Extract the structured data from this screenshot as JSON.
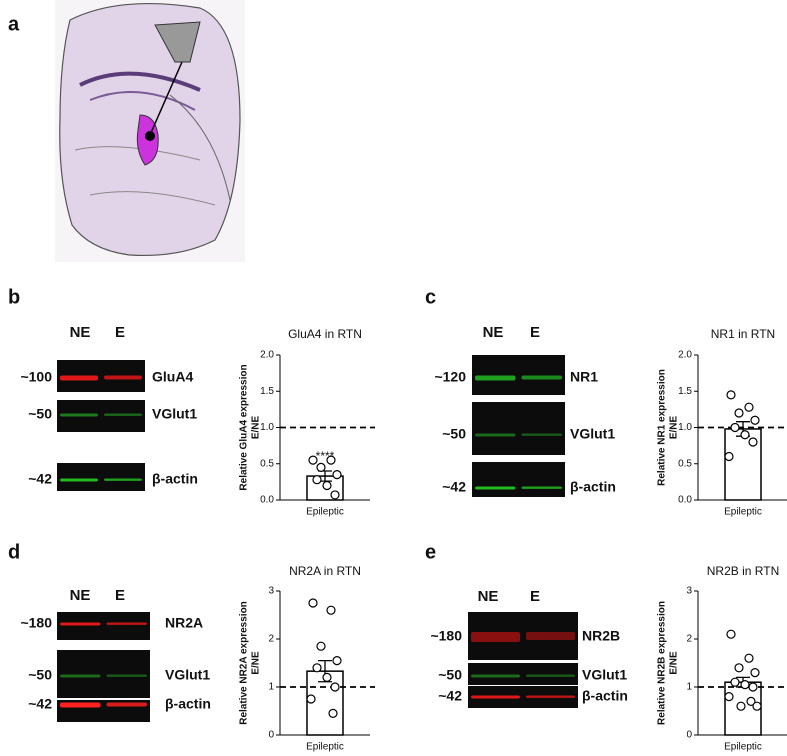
{
  "panel_labels": [
    "a",
    "b",
    "c",
    "d",
    "e"
  ],
  "blots": [
    {
      "lanes": [
        "NE",
        "E"
      ],
      "markers": [
        "~100",
        "~50",
        "~42"
      ],
      "proteins": [
        "GluA4",
        "VGlut1",
        "β-actin"
      ]
    },
    {
      "lanes": [
        "NE",
        "E"
      ],
      "markers": [
        "~120",
        "~50",
        "~42"
      ],
      "proteins": [
        "NR1",
        "VGlut1",
        "β-actin"
      ]
    },
    {
      "lanes": [
        "NE",
        "E"
      ],
      "markers": [
        "~180",
        "~50",
        "~42"
      ],
      "proteins": [
        "NR2A",
        "VGlut1",
        "β-actin"
      ]
    },
    {
      "lanes": [
        "NE",
        "E"
      ],
      "markers": [
        "~180",
        "~50",
        "~42"
      ],
      "proteins": [
        "NR2B",
        "VGlut1",
        "β-actin"
      ]
    }
  ],
  "chart_data": [
    {
      "type": "bar",
      "title": "GluA4 in RTN",
      "ylabel": [
        "Relative GluA4 expression",
        "E/NE"
      ],
      "categories": [
        "Epileptic"
      ],
      "values": [
        0.33
      ],
      "errors": [
        0.07
      ],
      "points": [
        0.55,
        0.55,
        0.45,
        0.35,
        0.28,
        0.2,
        0.07
      ],
      "reference_line": 1,
      "annotation": "****",
      "ylim": [
        0,
        2
      ],
      "yticks": [
        {
          "value": 0,
          "label": "0.0"
        },
        {
          "value": 0.5,
          "label": "0.5"
        },
        {
          "value": 1,
          "label": "1.0"
        },
        {
          "value": 1.5,
          "label": "1.5"
        },
        {
          "value": 2,
          "label": "2.0"
        }
      ]
    },
    {
      "type": "bar",
      "title": "NR1 in RTN",
      "ylabel": [
        "Relative NR1 expression",
        "E/NE"
      ],
      "categories": [
        "Epileptic"
      ],
      "values": [
        0.98
      ],
      "errors": [
        0.1
      ],
      "points": [
        1.45,
        1.28,
        1.2,
        1.1,
        1.0,
        0.9,
        0.8,
        0.6
      ],
      "reference_line": 1,
      "ylim": [
        0,
        2
      ],
      "yticks": [
        {
          "value": 0,
          "label": "0.0"
        },
        {
          "value": 0.5,
          "label": "0.5"
        },
        {
          "value": 1,
          "label": "1.0"
        },
        {
          "value": 1.5,
          "label": "1.5"
        },
        {
          "value": 2,
          "label": "2.0"
        }
      ]
    },
    {
      "type": "bar",
      "title": "NR2A in RTN",
      "ylabel": [
        "Relative NR2A expression",
        "E/NE"
      ],
      "categories": [
        "Epileptic"
      ],
      "values": [
        1.33
      ],
      "errors": [
        0.22
      ],
      "points": [
        2.75,
        2.6,
        1.85,
        1.55,
        1.4,
        1.2,
        1.0,
        0.75,
        0.45
      ],
      "reference_line": 1,
      "ylim": [
        0,
        3
      ],
      "yticks": [
        0,
        1,
        2,
        3
      ]
    },
    {
      "type": "bar",
      "title": "NR2B in RTN",
      "ylabel": [
        "Relative NR2B expression",
        "E/NE"
      ],
      "categories": [
        "Epileptic"
      ],
      "values": [
        1.1
      ],
      "errors": [
        0.1
      ],
      "points": [
        2.1,
        1.6,
        1.4,
        1.3,
        1.1,
        1.05,
        1.0,
        0.8,
        0.7,
        0.6,
        0.6
      ],
      "reference_line": 1,
      "ylim": [
        0,
        3
      ],
      "yticks": [
        0,
        1,
        2,
        3
      ]
    }
  ]
}
